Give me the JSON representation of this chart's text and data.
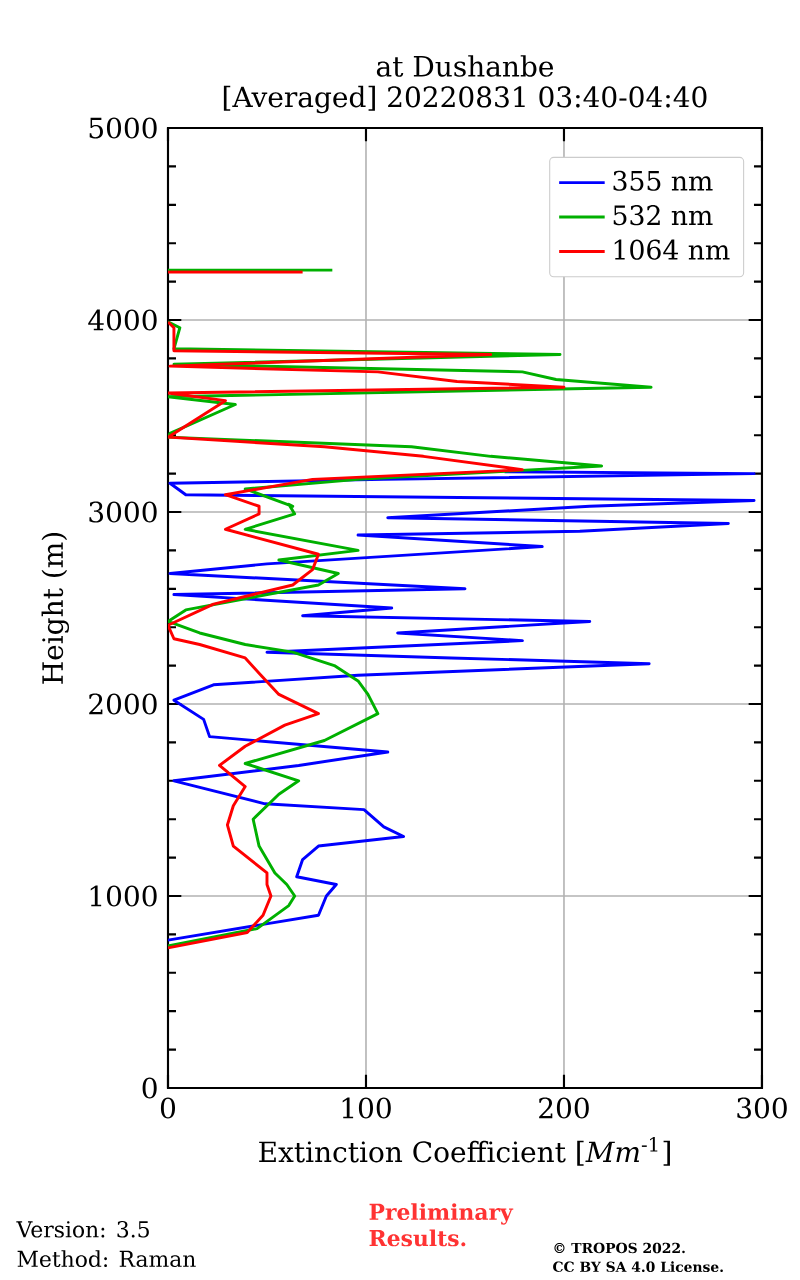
{
  "chart_data": {
    "type": "line",
    "title": "at Dushanbe",
    "subtitle": "[Averaged] 20220831 03:40-04:40",
    "xlabel": "Extinction Coefficient [*Mm*$^{-1}$]",
    "ylabel": "Height (m)",
    "xlim": [
      0,
      300
    ],
    "ylim": [
      0,
      5000
    ],
    "xticks": [
      0,
      100,
      200,
      300
    ],
    "yticks": [
      0,
      1000,
      2000,
      3000,
      4000,
      5000
    ],
    "grid": true,
    "legend": "top right",
    "line_style": "solid",
    "marker": "none",
    "series": [
      {
        "name": "355 nm",
        "color": "#0000ff",
        "x": [
          0,
          76,
          80,
          85,
          65,
          68,
          76,
          119,
          109,
          99,
          49,
          3,
          66,
          111,
          21,
          18,
          3,
          23,
          96,
          243,
          143,
          50,
          179,
          116,
          213,
          68,
          113,
          3,
          150,
          1,
          50,
          189,
          96,
          208,
          283,
          111,
          213,
          296,
          9,
          1,
          109,
          296,
          170
        ],
        "values": [
          770,
          900,
          1000,
          1060,
          1100,
          1190,
          1260,
          1310,
          1360,
          1450,
          1480,
          1600,
          1680,
          1750,
          1830,
          1920,
          2020,
          2100,
          2150,
          2210,
          2240,
          2270,
          2330,
          2370,
          2430,
          2460,
          2500,
          2570,
          2600,
          2680,
          2730,
          2820,
          2880,
          2900,
          2940,
          2970,
          3030,
          3060,
          3090,
          3150,
          3170,
          3200,
          3210
        ]
      },
      {
        "name": "532 nm",
        "color": "#00b000",
        "x": [
          0,
          45,
          61,
          64,
          60,
          54,
          46,
          43,
          56,
          66,
          39,
          79,
          106,
          101,
          96,
          84,
          63,
          39,
          16,
          0,
          9,
          76,
          86,
          56,
          96,
          39,
          64,
          61,
          63,
          39,
          96,
          219,
          163,
          123,
          0,
          1,
          34,
          0,
          244,
          196,
          179,
          3,
          198,
          3,
          6,
          0,
          null,
          0,
          83
        ],
        "values": [
          740,
          830,
          950,
          1000,
          1060,
          1120,
          1260,
          1400,
          1530,
          1600,
          1690,
          1810,
          1950,
          2050,
          2120,
          2200,
          2270,
          2310,
          2370,
          2430,
          2490,
          2620,
          2680,
          2750,
          2800,
          2910,
          2990,
          3040,
          3030,
          3120,
          3170,
          3240,
          3290,
          3340,
          3390,
          3410,
          3560,
          3600,
          3650,
          3690,
          3730,
          3770,
          3820,
          3850,
          3960,
          3990,
          null,
          4260,
          4260
        ]
      },
      {
        "name": "1064 nm",
        "color": "#ff0000",
        "x": [
          0,
          40,
          48,
          52,
          50,
          50,
          33,
          30,
          33,
          39,
          26,
          39,
          59,
          76,
          56,
          46,
          39,
          16,
          3,
          0,
          23,
          63,
          73,
          76,
          29,
          46,
          46,
          29,
          73,
          179,
          129,
          79,
          0,
          29,
          0,
          200,
          146,
          106,
          1,
          163,
          3,
          3,
          0,
          null,
          0,
          68
        ],
        "values": [
          730,
          810,
          900,
          1000,
          1060,
          1120,
          1260,
          1370,
          1470,
          1570,
          1680,
          1780,
          1890,
          1950,
          2050,
          2160,
          2240,
          2310,
          2340,
          2410,
          2520,
          2620,
          2700,
          2780,
          2910,
          2990,
          3030,
          3090,
          3170,
          3220,
          3290,
          3340,
          3390,
          3580,
          3620,
          3650,
          3680,
          3730,
          3760,
          3820,
          3840,
          3960,
          3990,
          null,
          4250,
          4250
        ]
      }
    ],
    "annotations": [
      "Version: 3.5",
      "Method: Raman",
      "Preliminary Results.",
      "© TROPOS 2022.",
      "CC BY SA 4.0 License."
    ]
  }
}
